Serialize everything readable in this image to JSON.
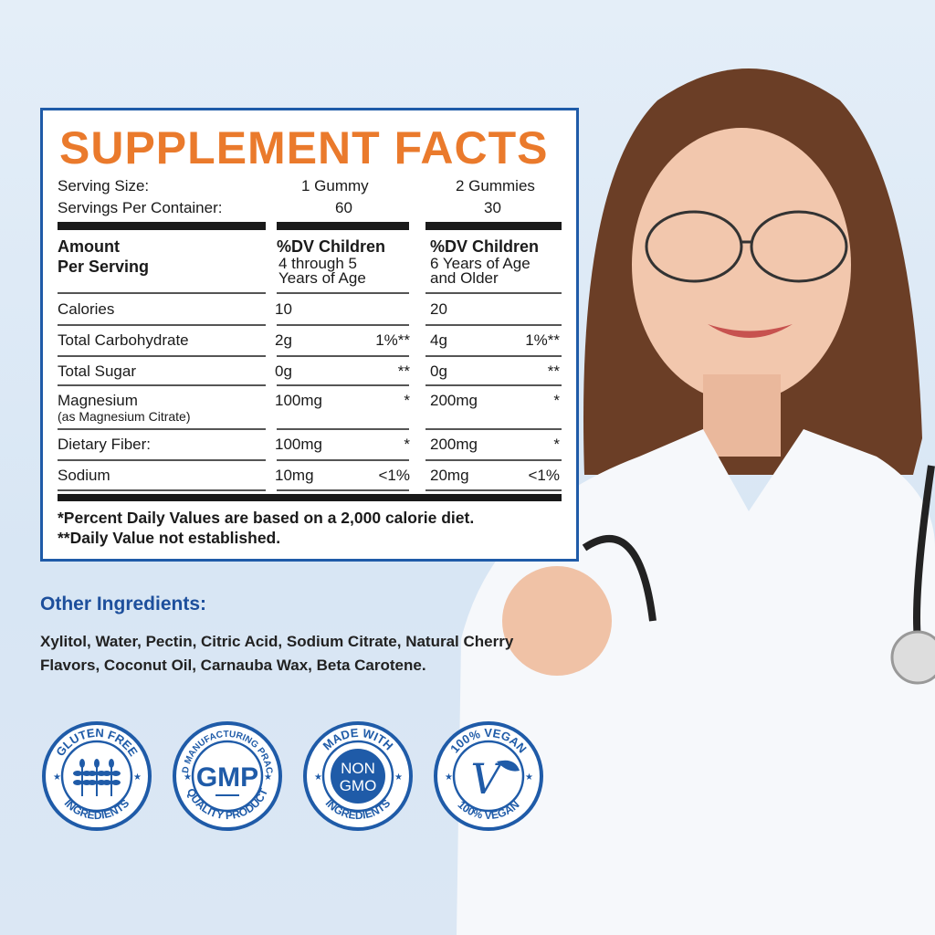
{
  "label": {
    "title": "SUPPLEMENT FACTS",
    "serving_size_label": "Serving Size:",
    "serving_size_1": "1 Gummy",
    "serving_size_2": "2 Gummies",
    "servings_label": "Servings Per Container:",
    "servings_1": "60",
    "servings_2": "30",
    "header": {
      "col1_line1": "Amount",
      "col1_line2": "Per Serving",
      "col2_title": "%DV Children",
      "col2_sub1": "4 through 5",
      "col2_sub2": "Years of Age",
      "col3_title": "%DV Children",
      "col3_sub1": "6 Years of Age",
      "col3_sub2": "and Older"
    },
    "rows": [
      {
        "name": "Calories",
        "a1": "10",
        "d1": "",
        "a2": "20",
        "d2": ""
      },
      {
        "name": "Total Carbohydrate",
        "a1": "2g",
        "d1": "1%**",
        "a2": "4g",
        "d2": "1%**"
      },
      {
        "name": "Total Sugar",
        "a1": "0g",
        "d1": "**",
        "a2": "0g",
        "d2": "**"
      },
      {
        "name": "Magnesium",
        "sub": "(as Magnesium Citrate)",
        "a1": "100mg",
        "d1": "*",
        "a2": "200mg",
        "d2": "*"
      },
      {
        "name": "Dietary Fiber:",
        "a1": "100mg",
        "d1": "*",
        "a2": "200mg",
        "d2": "*"
      },
      {
        "name": "Sodium",
        "a1": "10mg",
        "d1": "<1%",
        "a2": "20mg",
        "d2": "<1%"
      }
    ],
    "footnote1": "*Percent Daily Values are based on a 2,000 calorie diet.",
    "footnote2": "**Daily Value not established."
  },
  "other_ingredients": {
    "title": "Other Ingredients:",
    "text": "Xylitol, Water, Pectin, Citric Acid, Sodium Citrate, Natural Cherry Flavors, Coconut Oil, Carnauba Wax, Beta Carotene."
  },
  "badges": [
    {
      "top": "GLUTEN FREE",
      "bottom": "INGREDIENTS",
      "icon": "wheat-icon"
    },
    {
      "top": "GOOD MANUFACTURING PRACTICE",
      "bottom": "QUALITY PRODUCT",
      "center": "GMP"
    },
    {
      "top": "MADE WITH",
      "bottom": "INGREDIENTS",
      "center1": "NON",
      "center2": "GMO"
    },
    {
      "top": "100% VEGAN",
      "bottom": "100% VEGAN",
      "icon": "v-leaf-icon"
    }
  ],
  "colors": {
    "accent": "#ea7a2c",
    "brand_blue": "#1f5ba8",
    "background": "#dde9f5"
  }
}
